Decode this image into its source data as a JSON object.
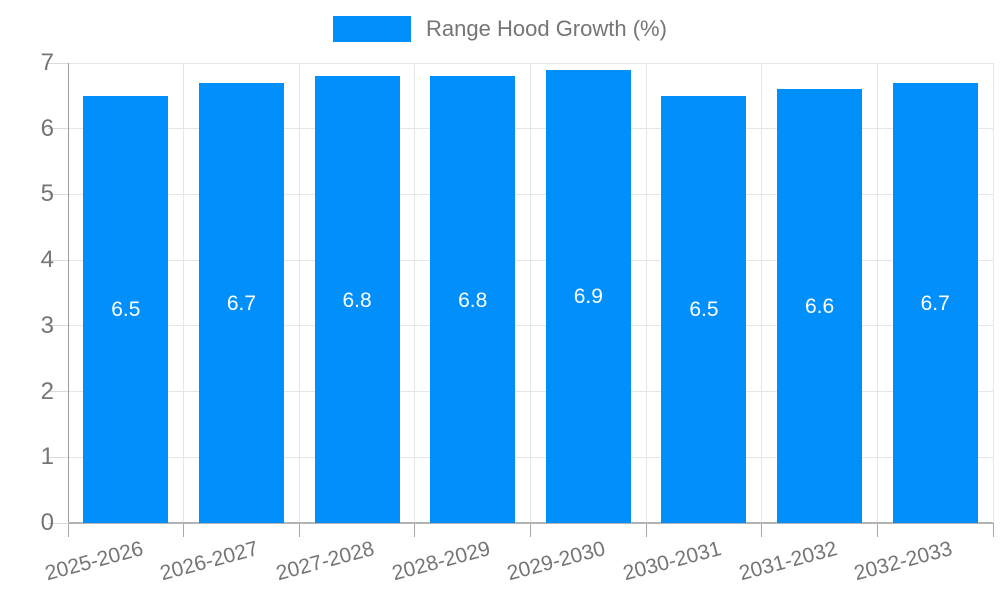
{
  "chart_data": {
    "type": "bar",
    "title": "",
    "legend": {
      "label": "Range Hood Growth (%)",
      "position": "top-center"
    },
    "categories": [
      "2025-2026",
      "2026-2027",
      "2027-2028",
      "2028-2029",
      "2029-2030",
      "2030-2031",
      "2031-2032",
      "2032-2033"
    ],
    "values": [
      6.5,
      6.7,
      6.8,
      6.8,
      6.9,
      6.5,
      6.6,
      6.7
    ],
    "value_labels": [
      "6.5",
      "6.7",
      "6.8",
      "6.8",
      "6.9",
      "6.5",
      "6.6",
      "6.7"
    ],
    "xlabel": "",
    "ylabel": "",
    "ylim": [
      0,
      7
    ],
    "yticks": [
      "0",
      "1",
      "2",
      "3",
      "4",
      "5",
      "6",
      "7"
    ],
    "grid": "on",
    "x_label_rotation_deg": -15,
    "colors": {
      "bar": "#008ffb",
      "axis_text": "#757575",
      "value_text": "#ffffff",
      "gridline": "#e6e6e6",
      "baseline": "#b3b3b3",
      "y_axis_line": "#9e9e9e"
    }
  }
}
